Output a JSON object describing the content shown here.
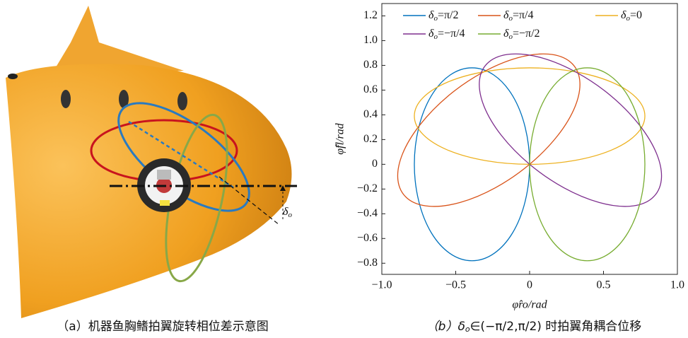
{
  "chart_data": {
    "type": "line",
    "xlabel": "φ̂ro/rad",
    "ylabel": "φ̂fl/rad",
    "xlim": [
      -1,
      1
    ],
    "ylim": [
      -0.89,
      1.3
    ],
    "xticks": [
      {
        "value": -1,
        "label": "−1.0"
      },
      {
        "value": -0.5,
        "label": "−0.5"
      },
      0,
      0.5,
      {
        "value": 1,
        "label": "1.0"
      }
    ],
    "yticks": [
      {
        "value": -0.8,
        "label": "−0.8"
      },
      {
        "value": -0.6,
        "label": "−0.6"
      },
      {
        "value": -0.4,
        "label": "−0.4"
      },
      {
        "value": -0.2,
        "label": "−0.2"
      },
      0,
      0.2,
      0.4,
      0.6,
      0.8,
      {
        "value": 1,
        "label": "1.0"
      },
      1.2
    ],
    "series": [
      {
        "name": "δo=π/2",
        "color": "#0072bd",
        "x": [
          -0.39,
          -0.539,
          -0.666,
          -0.75,
          -0.78,
          -0.75,
          -0.666,
          -0.539,
          -0.39,
          -0.241,
          -0.114,
          -0.03,
          0,
          -0.03,
          -0.114,
          -0.241
        ],
        "values": [
          0.78,
          0.721,
          0.552,
          0.299,
          0,
          -0.299,
          -0.552,
          -0.721,
          -0.78,
          -0.721,
          -0.552,
          -0.299,
          0,
          0.299,
          0.552,
          0.721
        ]
      },
      {
        "name": "δo=π/4",
        "color": "#d95319",
        "x": [
          0.276,
          0.128,
          -0.081,
          -0.319,
          -0.552,
          -0.742,
          -0.861,
          -0.891,
          -0.827,
          -0.68,
          -0.471,
          -0.232,
          0,
          0.19,
          0.309,
          0.339
        ],
        "values": [
          0.827,
          0.891,
          0.861,
          0.742,
          0.552,
          0.319,
          0.081,
          -0.128,
          -0.276,
          -0.339,
          -0.309,
          -0.19,
          0,
          0.232,
          0.471,
          0.68
        ]
      },
      {
        "name": "δo=0",
        "color": "#edb120",
        "x": [
          0.78,
          0.721,
          0.552,
          0.299,
          0,
          -0.299,
          -0.552,
          -0.721,
          -0.78,
          -0.721,
          -0.552,
          -0.299,
          0,
          0.299,
          0.552,
          0.721
        ],
        "values": [
          0.39,
          0.539,
          0.666,
          0.75,
          0.78,
          0.75,
          0.666,
          0.539,
          0.39,
          0.241,
          0.114,
          0.03,
          0,
          0.03,
          0.114,
          0.241
        ]
      },
      {
        "name": "δo=−π/4",
        "color": "#7e2f8e",
        "x": [
          0.827,
          0.891,
          0.861,
          0.742,
          0.552,
          0.319,
          0.081,
          -0.128,
          -0.276,
          -0.339,
          -0.309,
          -0.19,
          0,
          0.232,
          0.471,
          0.68
        ],
        "values": [
          -0.276,
          -0.128,
          0.081,
          0.319,
          0.552,
          0.742,
          0.861,
          0.891,
          0.827,
          0.68,
          0.471,
          0.232,
          0,
          -0.19,
          -0.309,
          -0.339
        ]
      },
      {
        "name": "δo=−π/2",
        "color": "#77ac30",
        "x": [
          0.39,
          0.539,
          0.666,
          0.75,
          0.78,
          0.75,
          0.666,
          0.539,
          0.39,
          0.241,
          0.114,
          0.03,
          0,
          0.03,
          0.114,
          0.241
        ],
        "values": [
          -0.78,
          -0.721,
          -0.552,
          -0.299,
          0,
          0.299,
          0.552,
          0.721,
          0.78,
          0.721,
          0.552,
          0.299,
          0,
          -0.299,
          -0.552,
          -0.721
        ]
      }
    ]
  },
  "illustration": {
    "label": "δo"
  },
  "captions": [
    "（a）机器鱼胸鳍拍翼旋转相位差示意图",
    "（b）δo∈(−π/2,π/2) 时拍翼角耦合位移"
  ]
}
